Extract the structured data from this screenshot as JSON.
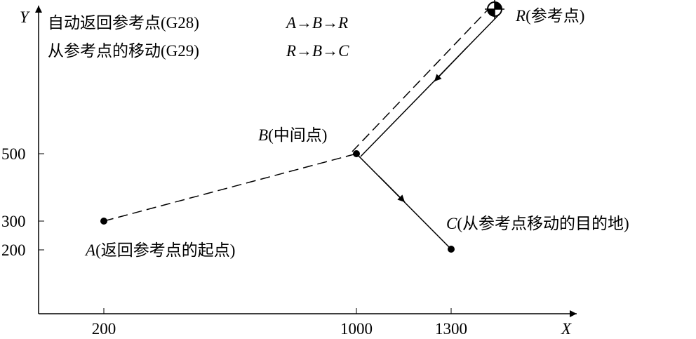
{
  "axes": {
    "x_label": "X",
    "y_label": "Y",
    "x_ticks": [
      "200",
      "1000",
      "1300"
    ],
    "y_ticks": [
      "500",
      "300",
      "200"
    ]
  },
  "legend": [
    {
      "label": "自动返回参考点(G28)",
      "path": "A→B→R"
    },
    {
      "label": "从参考点的移动(G29)",
      "path": "R→B→C"
    }
  ],
  "points": [
    {
      "letter": "A",
      "label": "(返回参考点的起点)"
    },
    {
      "letter": "B",
      "label": "(中间点)"
    },
    {
      "letter": "C",
      "label": "(从参考点移动的目的地)"
    },
    {
      "letter": "R",
      "label": "(参考点)"
    }
  ]
}
